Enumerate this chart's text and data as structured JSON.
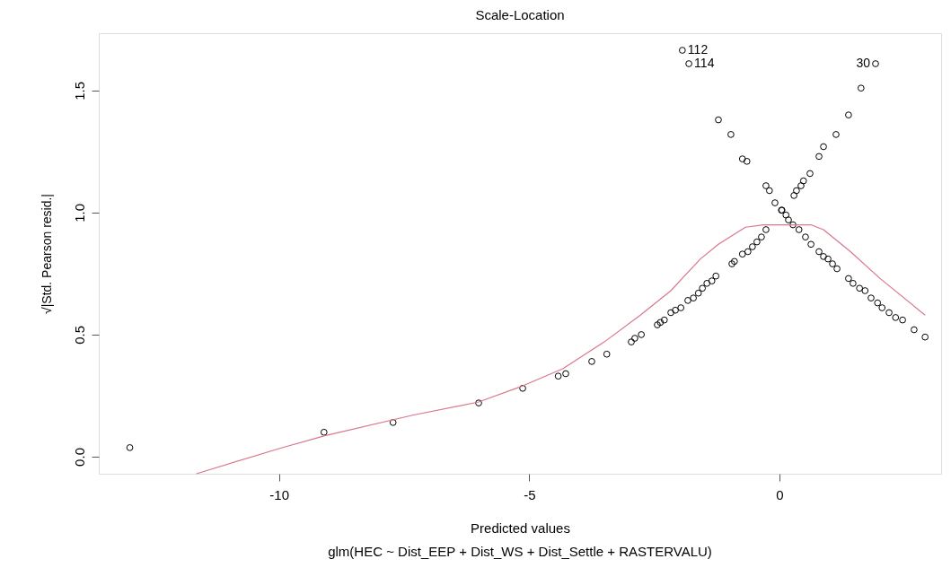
{
  "chart_data": {
    "type": "scatter",
    "title": "Scale-Location",
    "xlabel": "Predicted values",
    "ylabel": "√|Std. Pearson resid.|",
    "annotations": [
      "glm(HEC ~ Dist_EEP + Dist_WS + Dist_Settle + RASTERVALU)",
      {
        "text": "112",
        "x": -1.94,
        "y": 1.665
      },
      {
        "text": "114",
        "x": -1.81,
        "y": 1.61
      },
      {
        "text": "30",
        "x": 1.92,
        "y": 1.61
      }
    ],
    "xlim": [
      -13.6,
      3.23
    ],
    "ylim": [
      -0.07,
      1.735
    ],
    "xticks": [
      -10,
      -5,
      0
    ],
    "yticks": [
      {
        "value": 0,
        "label": "0.0"
      },
      {
        "value": 0.5,
        "label": "0.5"
      },
      {
        "value": 1,
        "label": "1.0"
      },
      {
        "value": 1.5,
        "label": "1.5"
      }
    ],
    "grid": false,
    "marker": "circle",
    "series": [
      {
        "color": "#000000",
        "x": [
          -12.98,
          -9.1,
          -7.72,
          -6.01,
          -5.13,
          -4.42,
          -4.27,
          -3.75,
          -3.45,
          -2.96,
          -2.89,
          -2.76,
          -2.44,
          -2.38,
          -2.3,
          -2.17,
          -2.08,
          -1.97,
          -1.83,
          -1.72,
          -1.62,
          -1.54,
          -1.45,
          -1.35,
          -1.27,
          -0.95,
          -0.9,
          -0.74,
          -0.63,
          -0.54,
          -0.45,
          -0.36,
          -0.27,
          -1.94,
          -1.81,
          -1.22,
          -0.97,
          -0.74,
          -0.65,
          -0.27,
          -0.2,
          -0.09,
          0.05,
          0.04,
          0.13,
          0.18,
          0.27,
          0.39,
          0.52,
          0.63,
          0.79,
          0.88,
          0.97,
          1.06,
          1.15,
          1.38,
          1.47,
          1.6,
          1.71,
          1.83,
          1.96,
          2.05,
          2.19,
          2.32,
          2.46,
          2.69,
          2.91,
          1.92,
          1.63,
          1.38,
          1.13,
          0.88,
          0.79,
          0.61,
          0.48,
          0.43,
          0.34,
          0.29
        ],
        "values": [
          0.037,
          0.1,
          0.14,
          0.22,
          0.28,
          0.33,
          0.34,
          0.39,
          0.42,
          0.47,
          0.485,
          0.5,
          0.54,
          0.55,
          0.56,
          0.59,
          0.6,
          0.61,
          0.64,
          0.65,
          0.67,
          0.69,
          0.71,
          0.72,
          0.74,
          0.79,
          0.8,
          0.83,
          0.84,
          0.86,
          0.88,
          0.9,
          0.93,
          1.665,
          1.61,
          1.38,
          1.32,
          1.22,
          1.21,
          1.11,
          1.09,
          1.04,
          1.01,
          1.01,
          0.99,
          0.97,
          0.95,
          0.93,
          0.9,
          0.87,
          0.84,
          0.82,
          0.81,
          0.79,
          0.77,
          0.73,
          0.71,
          0.69,
          0.68,
          0.65,
          0.63,
          0.61,
          0.59,
          0.57,
          0.56,
          0.52,
          0.49,
          1.61,
          1.51,
          1.4,
          1.32,
          1.27,
          1.23,
          1.16,
          1.13,
          1.11,
          1.09,
          1.07
        ]
      },
      {
        "type": "line",
        "color": "#d9778b",
        "marker": "none",
        "x": [
          -11.65,
          -10.0,
          -9.1,
          -7.33,
          -6.01,
          -5.13,
          -4.33,
          -3.5,
          -2.78,
          -2.17,
          -1.58,
          -1.22,
          -0.68,
          -0.32,
          0.63,
          0.88,
          1.42,
          2.01,
          2.91
        ],
        "values": [
          -0.07,
          0.033,
          0.085,
          0.17,
          0.224,
          0.29,
          0.36,
          0.47,
          0.58,
          0.68,
          0.81,
          0.87,
          0.94,
          0.95,
          0.95,
          0.93,
          0.84,
          0.73,
          0.58
        ]
      }
    ]
  }
}
